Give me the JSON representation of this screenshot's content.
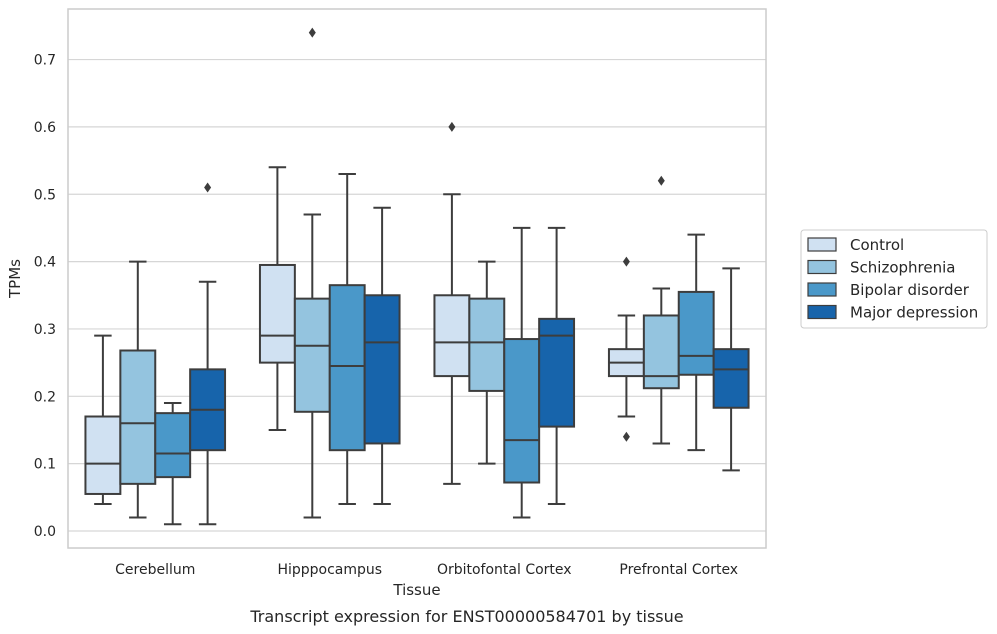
{
  "caption": "Transcript expression for ENST00000584701 by tissue",
  "chart_data": {
    "type": "boxplot",
    "xlabel": "Tissue",
    "ylabel": "TPMs",
    "ylim": [
      -0.025,
      0.78
    ],
    "yticks": [
      "0.0",
      "0.1",
      "0.2",
      "0.3",
      "0.4",
      "0.5",
      "0.6",
      "0.7"
    ],
    "grid": true,
    "legend_position": "right",
    "categories": [
      "Cerebellum",
      "Hipppocampus",
      "Orbitofontal Cortex",
      "Prefrontal Cortex"
    ],
    "series": [
      {
        "name": "Control",
        "color": "#d0e1f2",
        "boxes": [
          {
            "whislo": 0.04,
            "q1": 0.055,
            "med": 0.1,
            "q3": 0.17,
            "whishi": 0.29,
            "fliers": []
          },
          {
            "whislo": 0.15,
            "q1": 0.25,
            "med": 0.29,
            "q3": 0.395,
            "whishi": 0.54,
            "fliers": []
          },
          {
            "whislo": 0.07,
            "q1": 0.23,
            "med": 0.28,
            "q3": 0.35,
            "whishi": 0.5,
            "fliers": [
              0.6
            ]
          },
          {
            "whislo": 0.17,
            "q1": 0.23,
            "med": 0.25,
            "q3": 0.27,
            "whishi": 0.32,
            "fliers": [
              0.4,
              0.14
            ]
          }
        ]
      },
      {
        "name": "Schizophrenia",
        "color": "#94c4df",
        "boxes": [
          {
            "whislo": 0.02,
            "q1": 0.07,
            "med": 0.16,
            "q3": 0.268,
            "whishi": 0.4,
            "fliers": []
          },
          {
            "whislo": 0.02,
            "q1": 0.177,
            "med": 0.275,
            "q3": 0.345,
            "whishi": 0.47,
            "fliers": [
              0.74
            ]
          },
          {
            "whislo": 0.1,
            "q1": 0.208,
            "med": 0.28,
            "q3": 0.345,
            "whishi": 0.4,
            "fliers": []
          },
          {
            "whislo": 0.13,
            "q1": 0.212,
            "med": 0.23,
            "q3": 0.32,
            "whishi": 0.36,
            "fliers": [
              0.52
            ]
          }
        ]
      },
      {
        "name": "Bipolar disorder",
        "color": "#4a98c9",
        "boxes": [
          {
            "whislo": 0.01,
            "q1": 0.08,
            "med": 0.115,
            "q3": 0.175,
            "whishi": 0.19,
            "fliers": []
          },
          {
            "whislo": 0.04,
            "q1": 0.12,
            "med": 0.245,
            "q3": 0.365,
            "whishi": 0.53,
            "fliers": []
          },
          {
            "whislo": 0.02,
            "q1": 0.072,
            "med": 0.135,
            "q3": 0.285,
            "whishi": 0.45,
            "fliers": []
          },
          {
            "whislo": 0.12,
            "q1": 0.232,
            "med": 0.26,
            "q3": 0.355,
            "whishi": 0.44,
            "fliers": []
          }
        ]
      },
      {
        "name": "Major depression",
        "color": "#1764ab",
        "boxes": [
          {
            "whislo": 0.01,
            "q1": 0.12,
            "med": 0.18,
            "q3": 0.24,
            "whishi": 0.37,
            "fliers": [
              0.51
            ]
          },
          {
            "whislo": 0.04,
            "q1": 0.13,
            "med": 0.28,
            "q3": 0.35,
            "whishi": 0.48,
            "fliers": []
          },
          {
            "whislo": 0.04,
            "q1": 0.155,
            "med": 0.29,
            "q3": 0.315,
            "whishi": 0.45,
            "fliers": []
          },
          {
            "whislo": 0.09,
            "q1": 0.183,
            "med": 0.24,
            "q3": 0.27,
            "whishi": 0.39,
            "fliers": []
          }
        ]
      }
    ]
  }
}
